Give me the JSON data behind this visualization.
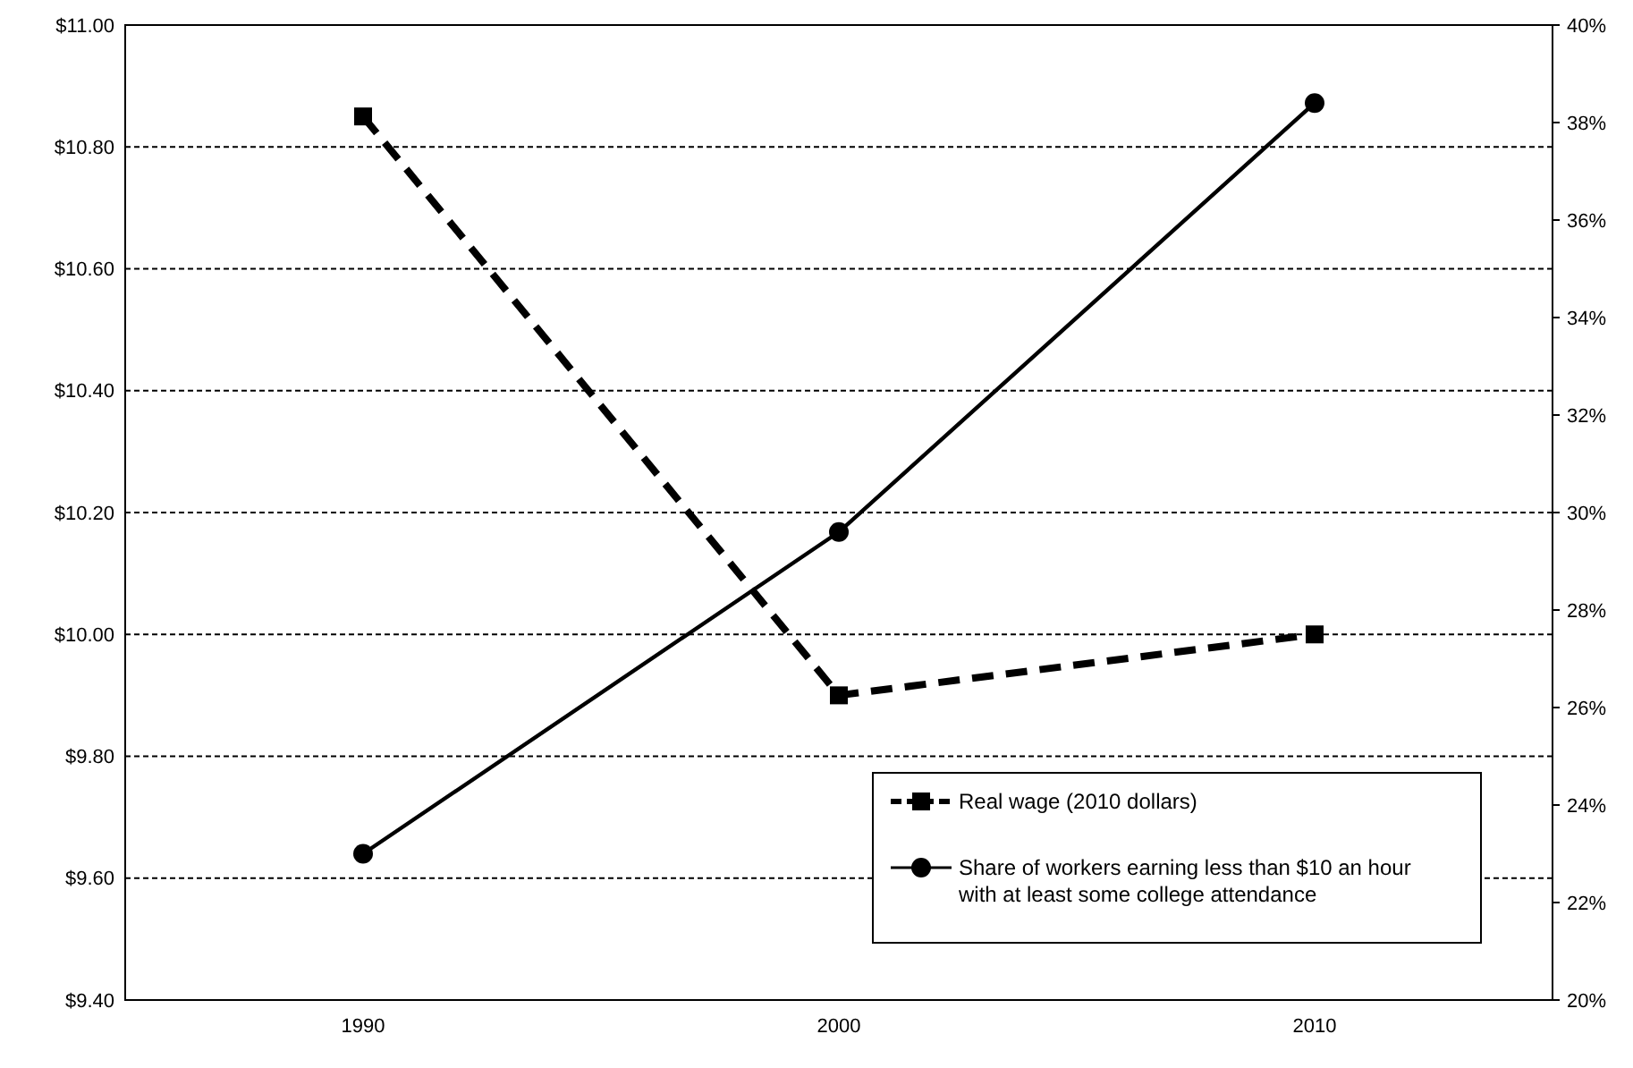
{
  "chart_data": {
    "type": "line",
    "categories": [
      "1990",
      "2000",
      "2010"
    ],
    "ylim": [
      9.4,
      11
    ],
    "yticks": [
      {
        "value": 9.4,
        "label": "$9.40"
      },
      {
        "value": 9.6,
        "label": "$9.60"
      },
      {
        "value": 9.8,
        "label": "$9.80"
      },
      {
        "value": 10,
        "label": "$10.00"
      },
      {
        "value": 10.2,
        "label": "$10.20"
      },
      {
        "value": 10.4,
        "label": "$10.40"
      },
      {
        "value": 10.6,
        "label": "$10.60"
      },
      {
        "value": 10.8,
        "label": "$10.80"
      },
      {
        "value": 11,
        "label": "$11.00"
      }
    ],
    "y2lim": [
      20,
      40
    ],
    "y2ticks": [
      {
        "value": 20,
        "label": "20%"
      },
      {
        "value": 22,
        "label": "22%"
      },
      {
        "value": 24,
        "label": "24%"
      },
      {
        "value": 26,
        "label": "26%"
      },
      {
        "value": 28,
        "label": "28%"
      },
      {
        "value": 30,
        "label": "30%"
      },
      {
        "value": 32,
        "label": "32%"
      },
      {
        "value": 34,
        "label": "34%"
      },
      {
        "value": 36,
        "label": "36%"
      },
      {
        "value": 38,
        "label": "38%"
      },
      {
        "value": 40,
        "label": "40%"
      }
    ],
    "grid": "y",
    "legend": "bottom right",
    "series": [
      {
        "name": "Real wage (2010 dollars)",
        "color": "#000000",
        "values": [
          10.85,
          9.9,
          10.0
        ],
        "axis": "y",
        "line_style": "dashed",
        "marker": "square"
      },
      {
        "name": "Share of workers earning less than $10 an hour with at least some college attendance",
        "color": "#000000",
        "values": [
          23.0,
          29.6,
          38.4
        ],
        "axis": "y2",
        "line_style": "solid",
        "marker": "circle"
      }
    ]
  }
}
